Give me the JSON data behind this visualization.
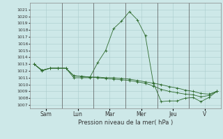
{
  "xlabel": "Pression niveau de la mer( hPa )",
  "bg_color": "#cde8e8",
  "grid_color": "#aacccc",
  "line_color": "#2d6a2d",
  "ylim": [
    1006.5,
    1022.0
  ],
  "yticks": [
    1007,
    1008,
    1009,
    1010,
    1011,
    1012,
    1013,
    1014,
    1015,
    1016,
    1017,
    1018,
    1019,
    1020,
    1021
  ],
  "day_labels": [
    "Sam",
    "Lun",
    "Mar",
    "Mer",
    "Jeu",
    "V"
  ],
  "day_tick_pos": [
    2,
    6,
    10,
    14,
    18,
    22
  ],
  "n_points": 24,
  "series1": [
    1013.0,
    1012.0,
    1012.4,
    1012.4,
    1012.4,
    1011.0,
    1011.0,
    1011.0,
    1013.2,
    1015.0,
    1018.2,
    1019.3,
    1020.7,
    1019.5,
    1017.2,
    1010.3,
    1007.5,
    1007.6,
    1007.6,
    1008.0,
    1008.1,
    1007.5,
    1008.1,
    1009.0
  ],
  "series2": [
    1013.0,
    1012.1,
    1012.4,
    1012.4,
    1012.4,
    1011.3,
    1011.2,
    1011.1,
    1011.0,
    1010.9,
    1010.8,
    1010.7,
    1010.6,
    1010.4,
    1010.2,
    1009.8,
    1009.3,
    1009.0,
    1008.8,
    1008.6,
    1008.5,
    1008.2,
    1008.4,
    1009.0
  ],
  "series3": [
    1013.0,
    1012.1,
    1012.4,
    1012.4,
    1012.4,
    1011.3,
    1011.2,
    1011.1,
    1011.1,
    1011.0,
    1011.0,
    1010.9,
    1010.8,
    1010.6,
    1010.4,
    1010.2,
    1010.0,
    1009.7,
    1009.5,
    1009.2,
    1009.0,
    1008.7,
    1008.6,
    1009.0
  ]
}
